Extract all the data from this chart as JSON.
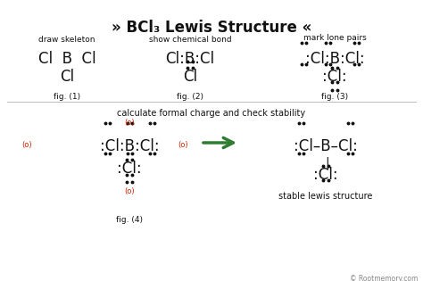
{
  "bg_color": "#ffffff",
  "text_color": "#111111",
  "gray_color": "#888888",
  "red_color": "#cc2200",
  "green_color": "#2e7d32",
  "dot_color": "#111111",
  "title": "» BCl₃ Lewis Structure «",
  "section1_label": "draw skeleton",
  "section2_label": "show chemical bond",
  "section3_label": "mark lone pairs",
  "section4_label": "calculate formal charge and check stability",
  "stable_label": "stable lewis structure",
  "fig1_label": "fig. (1)",
  "fig2_label": "fig. (2)",
  "fig3_label": "fig. (3)",
  "fig4_label": "fig. (4)",
  "copyright": "© Rootmemory.com"
}
